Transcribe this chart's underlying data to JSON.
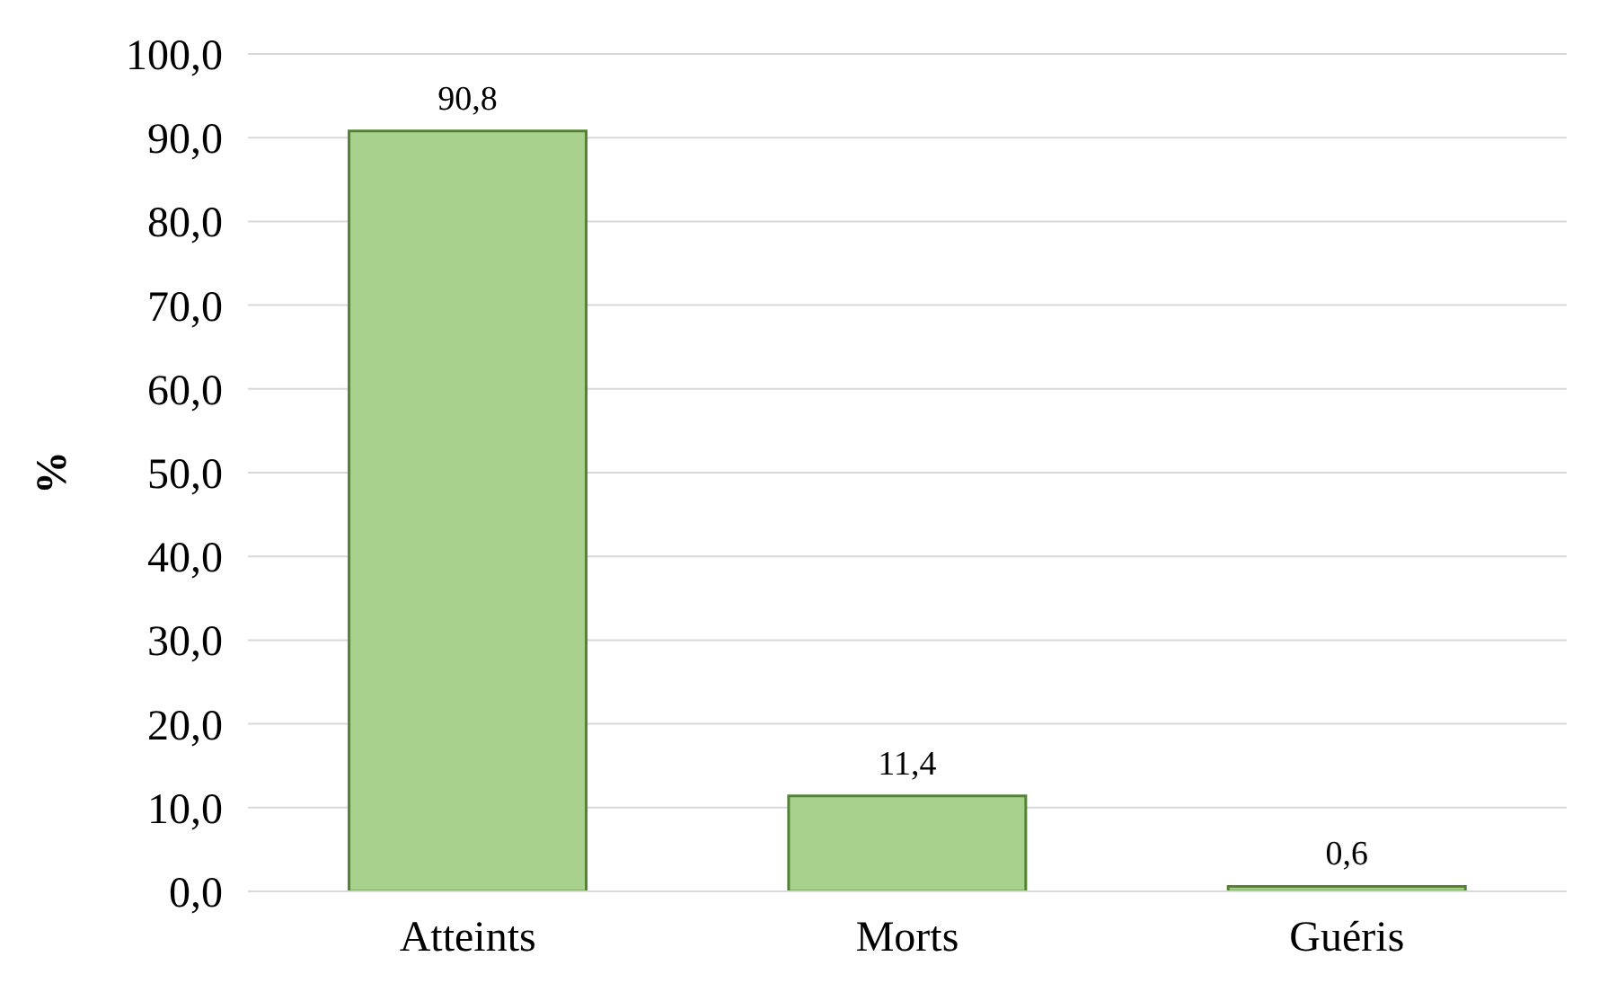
{
  "chart_data": {
    "type": "bar",
    "ylabel": "%",
    "categories": [
      "Atteints",
      "Morts",
      "Guéris"
    ],
    "values": [
      90.8,
      11.4,
      0.6
    ],
    "value_labels": [
      "90,8",
      "11,4",
      "0,6"
    ],
    "color": "#a9d18e",
    "ylim": [
      0,
      100
    ],
    "yticks": [
      {
        "value": 0,
        "label": "0,0"
      },
      {
        "value": 10,
        "label": "10,0"
      },
      {
        "value": 20,
        "label": "20,0"
      },
      {
        "value": 30,
        "label": "30,0"
      },
      {
        "value": 40,
        "label": "40,0"
      },
      {
        "value": 50,
        "label": "50,0"
      },
      {
        "value": 60,
        "label": "60,0"
      },
      {
        "value": 70,
        "label": "70,0"
      },
      {
        "value": 80,
        "label": "80,0"
      },
      {
        "value": 90,
        "label": "90,0"
      },
      {
        "value": 100,
        "label": "100,0"
      }
    ],
    "grid": "y",
    "legend": false
  }
}
